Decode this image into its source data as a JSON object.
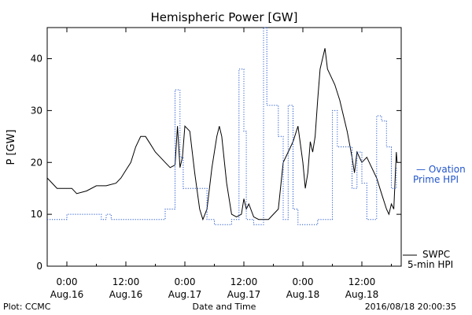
{
  "chart_data": {
    "type": "line",
    "title": "Hemispheric Power [GW]",
    "xlabel": "Date and Time",
    "ylabel": "P [GW]",
    "xlim": [
      "2016-08-15 20:00",
      "2016-08-18 20:00"
    ],
    "ylim": [
      0,
      46
    ],
    "yticks": [
      0,
      10,
      20,
      30,
      40
    ],
    "xticks": [
      {
        "t": "2016-08-16 00:00",
        "line1": "0:00",
        "line2": "Aug.16"
      },
      {
        "t": "2016-08-16 12:00",
        "line1": "12:00",
        "line2": "Aug.16"
      },
      {
        "t": "2016-08-17 00:00",
        "line1": "0:00",
        "line2": "Aug.17"
      },
      {
        "t": "2016-08-17 12:00",
        "line1": "12:00",
        "line2": "Aug.17"
      },
      {
        "t": "2016-08-18 00:00",
        "line1": "0:00",
        "line2": "Aug.18"
      },
      {
        "t": "2016-08-18 12:00",
        "line1": "12:00",
        "line2": "Aug.18"
      }
    ],
    "series": [
      {
        "name": "SWPC 5-min HPI",
        "color": "#000000",
        "style": "solid",
        "points": [
          [
            "2016-08-15 20:00",
            17
          ],
          [
            "2016-08-15 21:00",
            16
          ],
          [
            "2016-08-15 22:00",
            15
          ],
          [
            "2016-08-16 01:00",
            15
          ],
          [
            "2016-08-16 02:00",
            14
          ],
          [
            "2016-08-16 04:00",
            14.5
          ],
          [
            "2016-08-16 06:00",
            15.5
          ],
          [
            "2016-08-16 08:00",
            15.5
          ],
          [
            "2016-08-16 10:00",
            16
          ],
          [
            "2016-08-16 11:00",
            17
          ],
          [
            "2016-08-16 12:00",
            18.5
          ],
          [
            "2016-08-16 13:00",
            20
          ],
          [
            "2016-08-16 14:00",
            23
          ],
          [
            "2016-08-16 15:00",
            25
          ],
          [
            "2016-08-16 16:00",
            25
          ],
          [
            "2016-08-16 17:00",
            23.5
          ],
          [
            "2016-08-16 18:00",
            22
          ],
          [
            "2016-08-16 19:00",
            21
          ],
          [
            "2016-08-16 20:00",
            20
          ],
          [
            "2016-08-16 21:00",
            19
          ],
          [
            "2016-08-16 22:00",
            19.5
          ],
          [
            "2016-08-16 22:30",
            27
          ],
          [
            "2016-08-16 23:00",
            19
          ],
          [
            "2016-08-16 23:30",
            21
          ],
          [
            "2016-08-17 00:00",
            27
          ],
          [
            "2016-08-17 01:00",
            26
          ],
          [
            "2016-08-17 02:00",
            18
          ],
          [
            "2016-08-17 03:00",
            11
          ],
          [
            "2016-08-17 03:40",
            9
          ],
          [
            "2016-08-17 04:30",
            11
          ],
          [
            "2016-08-17 05:30",
            19
          ],
          [
            "2016-08-17 06:30",
            25
          ],
          [
            "2016-08-17 07:00",
            27
          ],
          [
            "2016-08-17 07:30",
            25
          ],
          [
            "2016-08-17 08:30",
            16
          ],
          [
            "2016-08-17 09:30",
            10
          ],
          [
            "2016-08-17 10:30",
            9.5
          ],
          [
            "2016-08-17 11:30",
            10
          ],
          [
            "2016-08-17 12:00",
            13
          ],
          [
            "2016-08-17 12:30",
            11
          ],
          [
            "2016-08-17 13:00",
            12
          ],
          [
            "2016-08-17 14:00",
            9.5
          ],
          [
            "2016-08-17 15:00",
            9
          ],
          [
            "2016-08-17 17:00",
            9
          ],
          [
            "2016-08-17 18:00",
            10
          ],
          [
            "2016-08-17 19:00",
            11
          ],
          [
            "2016-08-17 20:00",
            20
          ],
          [
            "2016-08-17 21:00",
            22
          ],
          [
            "2016-08-17 22:00",
            24
          ],
          [
            "2016-08-17 23:00",
            27
          ],
          [
            "2016-08-18 00:00",
            20
          ],
          [
            "2016-08-18 00:30",
            15
          ],
          [
            "2016-08-18 01:00",
            18
          ],
          [
            "2016-08-18 01:30",
            24
          ],
          [
            "2016-08-18 02:00",
            22
          ],
          [
            "2016-08-18 02:30",
            25
          ],
          [
            "2016-08-18 03:00",
            32
          ],
          [
            "2016-08-18 03:30",
            38
          ],
          [
            "2016-08-18 04:30",
            42
          ],
          [
            "2016-08-18 05:00",
            38
          ],
          [
            "2016-08-18 05:30",
            37
          ],
          [
            "2016-08-18 06:30",
            35
          ],
          [
            "2016-08-18 07:30",
            32
          ],
          [
            "2016-08-18 08:00",
            30
          ],
          [
            "2016-08-18 09:00",
            26
          ],
          [
            "2016-08-18 10:00",
            21
          ],
          [
            "2016-08-18 10:30",
            18
          ],
          [
            "2016-08-18 11:00",
            22
          ],
          [
            "2016-08-18 12:00",
            20
          ],
          [
            "2016-08-18 13:00",
            21
          ],
          [
            "2016-08-18 14:00",
            19
          ],
          [
            "2016-08-18 15:00",
            17
          ],
          [
            "2016-08-18 16:00",
            14
          ],
          [
            "2016-08-18 17:00",
            11
          ],
          [
            "2016-08-18 17:30",
            10
          ],
          [
            "2016-08-18 18:00",
            12
          ],
          [
            "2016-08-18 18:30",
            11
          ],
          [
            "2016-08-18 19:00",
            22
          ],
          [
            "2016-08-18 19:10",
            20
          ]
        ]
      },
      {
        "name": "Ovation Prime HPI",
        "color": "#2255cc",
        "style": "dotted",
        "points": [
          [
            "2016-08-15 20:00",
            9
          ],
          [
            "2016-08-16 00:00",
            9
          ],
          [
            "2016-08-16 00:00",
            10
          ],
          [
            "2016-08-16 07:00",
            10
          ],
          [
            "2016-08-16 07:00",
            9
          ],
          [
            "2016-08-16 08:00",
            9
          ],
          [
            "2016-08-16 08:00",
            10
          ],
          [
            "2016-08-16 09:00",
            10
          ],
          [
            "2016-08-16 09:00",
            9
          ],
          [
            "2016-08-16 20:00",
            9
          ],
          [
            "2016-08-16 20:00",
            11
          ],
          [
            "2016-08-16 22:00",
            11
          ],
          [
            "2016-08-16 22:00",
            34
          ],
          [
            "2016-08-16 23:00",
            34
          ],
          [
            "2016-08-16 23:00",
            21
          ],
          [
            "2016-08-16 23:40",
            21
          ],
          [
            "2016-08-16 23:40",
            15
          ],
          [
            "2016-08-17 04:30",
            15
          ],
          [
            "2016-08-17 04:30",
            9
          ],
          [
            "2016-08-17 06:00",
            9
          ],
          [
            "2016-08-17 06:00",
            8
          ],
          [
            "2016-08-17 09:30",
            8
          ],
          [
            "2016-08-17 09:30",
            9
          ],
          [
            "2016-08-17 11:00",
            9
          ],
          [
            "2016-08-17 11:00",
            38
          ],
          [
            "2016-08-17 12:00",
            38
          ],
          [
            "2016-08-17 12:00",
            26
          ],
          [
            "2016-08-17 12:30",
            26
          ],
          [
            "2016-08-17 12:30",
            9
          ],
          [
            "2016-08-17 14:00",
            9
          ],
          [
            "2016-08-17 14:00",
            8
          ],
          [
            "2016-08-17 16:00",
            8
          ],
          [
            "2016-08-17 16:00",
            46
          ],
          [
            "2016-08-17 16:40",
            46
          ],
          [
            "2016-08-17 16:40",
            31
          ],
          [
            "2016-08-17 19:00",
            31
          ],
          [
            "2016-08-17 19:00",
            25
          ],
          [
            "2016-08-17 20:00",
            25
          ],
          [
            "2016-08-17 20:00",
            9
          ],
          [
            "2016-08-17 21:00",
            9
          ],
          [
            "2016-08-17 21:00",
            31
          ],
          [
            "2016-08-17 22:00",
            31
          ],
          [
            "2016-08-17 22:00",
            11
          ],
          [
            "2016-08-17 23:00",
            11
          ],
          [
            "2016-08-17 23:00",
            8
          ],
          [
            "2016-08-18 03:00",
            8
          ],
          [
            "2016-08-18 03:00",
            9
          ],
          [
            "2016-08-18 06:00",
            9
          ],
          [
            "2016-08-18 06:00",
            30
          ],
          [
            "2016-08-18 07:00",
            30
          ],
          [
            "2016-08-18 07:00",
            23
          ],
          [
            "2016-08-18 10:00",
            23
          ],
          [
            "2016-08-18 10:00",
            15
          ],
          [
            "2016-08-18 11:00",
            15
          ],
          [
            "2016-08-18 11:00",
            22
          ],
          [
            "2016-08-18 12:00",
            22
          ],
          [
            "2016-08-18 12:00",
            16
          ],
          [
            "2016-08-18 13:00",
            16
          ],
          [
            "2016-08-18 13:00",
            9
          ],
          [
            "2016-08-18 15:00",
            9
          ],
          [
            "2016-08-18 15:00",
            29
          ],
          [
            "2016-08-18 16:00",
            29
          ],
          [
            "2016-08-18 16:00",
            28
          ],
          [
            "2016-08-18 17:00",
            28
          ],
          [
            "2016-08-18 17:00",
            23
          ],
          [
            "2016-08-18 18:00",
            23
          ],
          [
            "2016-08-18 18:00",
            15
          ],
          [
            "2016-08-18 19:00",
            15
          ],
          [
            "2016-08-18 19:00",
            19
          ],
          [
            "2016-08-18 19:10",
            19
          ]
        ]
      }
    ],
    "legend": {
      "ovation_line1": "— Ovation",
      "ovation_line2": "Prime HPI",
      "swpc_line1": "SWPC",
      "swpc_line2": "5-min HPI"
    },
    "footer_left": "Plot: CCMC",
    "footer_right": "2016/08/18 20:00:35",
    "grid": false
  }
}
